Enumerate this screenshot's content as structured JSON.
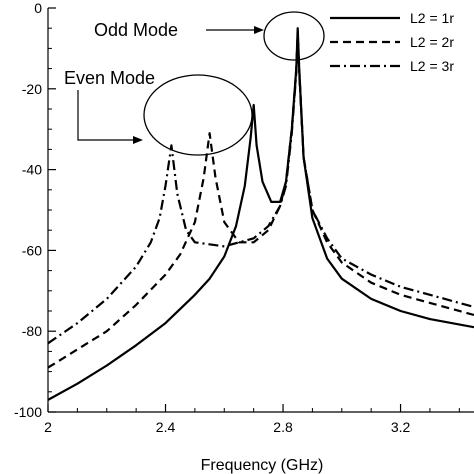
{
  "chart_data": {
    "type": "line",
    "title": "",
    "xlabel": "Frequency (GHz)",
    "ylabel": "",
    "xlim": [
      2.0,
      3.45
    ],
    "ylim": [
      -100,
      0
    ],
    "xticks": [
      2,
      2.4,
      2.8,
      3.2
    ],
    "xtick_labels": [
      "2",
      "2.4",
      "2.8",
      "3.2"
    ],
    "yticks": [
      0,
      -20,
      -40,
      -60,
      -80,
      -100
    ],
    "ytick_labels": [
      "0",
      "-20",
      "-40",
      "-60",
      "-80",
      "-100"
    ],
    "grid": false,
    "legend_position": "top-right",
    "series": [
      {
        "name": "L2 = 1r",
        "style": "solid",
        "color": "#000000",
        "x": [
          2.0,
          2.1,
          2.2,
          2.3,
          2.4,
          2.5,
          2.55,
          2.6,
          2.64,
          2.67,
          2.69,
          2.7,
          2.71,
          2.73,
          2.76,
          2.79,
          2.81,
          2.83,
          2.845,
          2.85,
          2.855,
          2.87,
          2.9,
          2.95,
          3.0,
          3.1,
          3.2,
          3.3,
          3.45
        ],
        "y": [
          -97,
          -93,
          -88.5,
          -83.5,
          -78,
          -71,
          -67,
          -61.5,
          -54,
          -44,
          -32,
          -24,
          -34,
          -43,
          -48,
          -48,
          -43,
          -30,
          -15,
          -5,
          -15,
          -37,
          -52,
          -62,
          -67,
          -72,
          -75,
          -77,
          -79
        ]
      },
      {
        "name": "L2 = 2r",
        "style": "dashed",
        "color": "#000000",
        "x": [
          2.0,
          2.1,
          2.2,
          2.3,
          2.4,
          2.45,
          2.5,
          2.53,
          2.55,
          2.57,
          2.6,
          2.65,
          2.7,
          2.75,
          2.79,
          2.81,
          2.83,
          2.845,
          2.85,
          2.855,
          2.87,
          2.9,
          2.95,
          3.0,
          3.1,
          3.2,
          3.3,
          3.45
        ],
        "y": [
          -89,
          -84.5,
          -80,
          -73.5,
          -66,
          -61,
          -53,
          -42,
          -31,
          -42,
          -53,
          -58,
          -58,
          -55,
          -49,
          -43,
          -30,
          -15,
          -6,
          -15,
          -37,
          -50,
          -58,
          -63,
          -68,
          -71,
          -73,
          -76
        ]
      },
      {
        "name": "L2 = 3r",
        "style": "dashdot",
        "color": "#000000",
        "x": [
          2.0,
          2.1,
          2.2,
          2.3,
          2.35,
          2.38,
          2.4,
          2.42,
          2.44,
          2.47,
          2.5,
          2.6,
          2.7,
          2.75,
          2.79,
          2.81,
          2.83,
          2.845,
          2.85,
          2.855,
          2.87,
          2.9,
          2.95,
          3.0,
          3.1,
          3.2,
          3.3,
          3.45
        ],
        "y": [
          -83,
          -78,
          -72,
          -64,
          -58,
          -52,
          -44,
          -34,
          -46,
          -55,
          -58,
          -59,
          -57,
          -54,
          -49,
          -44,
          -31,
          -16,
          -7,
          -16,
          -37,
          -50,
          -57,
          -62,
          -66,
          -69,
          -71,
          -74
        ]
      }
    ],
    "annotations": [
      {
        "text": "Odd Mode"
      },
      {
        "text": "Even Mode"
      }
    ]
  }
}
